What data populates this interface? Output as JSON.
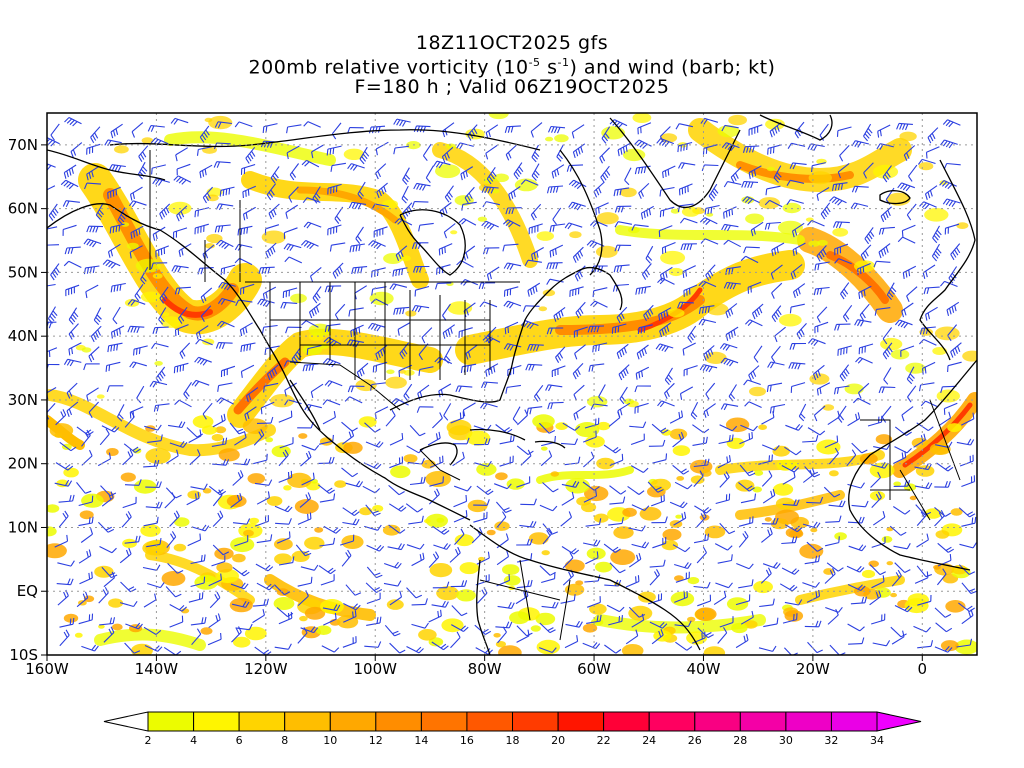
{
  "title": {
    "line1": "18Z11OCT2025 gfs",
    "line2_pre": "200mb relative vorticity (10",
    "line2_exp1": "-5",
    "line2_mid": " s",
    "line2_exp2": "-1",
    "line2_post": ") and wind (barb; kt)",
    "line3": "F=180 h ; Valid 06Z19OCT2025"
  },
  "map": {
    "lon_range": [
      -160,
      10
    ],
    "lat_range": [
      -10,
      75
    ],
    "lat_labels": [
      {
        "lat": 70,
        "text": "70N"
      },
      {
        "lat": 60,
        "text": "60N"
      },
      {
        "lat": 50,
        "text": "50N"
      },
      {
        "lat": 40,
        "text": "40N"
      },
      {
        "lat": 30,
        "text": "30N"
      },
      {
        "lat": 20,
        "text": "20N"
      },
      {
        "lat": 10,
        "text": "10N"
      },
      {
        "lat": 0,
        "text": "EQ"
      },
      {
        "lat": -10,
        "text": "10S"
      }
    ],
    "lon_labels": [
      {
        "lon": -160,
        "text": "160W"
      },
      {
        "lon": -140,
        "text": "140W"
      },
      {
        "lon": -120,
        "text": "120W"
      },
      {
        "lon": -100,
        "text": "100W"
      },
      {
        "lon": -80,
        "text": "80W"
      },
      {
        "lon": -60,
        "text": "60W"
      },
      {
        "lon": -40,
        "text": "40W"
      },
      {
        "lon": -20,
        "text": "20W"
      },
      {
        "lon": 0,
        "text": "0"
      }
    ],
    "barb_color": "#2b3fe0",
    "coast_color": "#000000"
  },
  "colorbar": {
    "levels": [
      "2",
      "4",
      "6",
      "8",
      "10",
      "12",
      "14",
      "16",
      "18",
      "20",
      "22",
      "24",
      "26",
      "28",
      "30",
      "32",
      "34"
    ],
    "colors": [
      "#ecfc00",
      "#fff500",
      "#ffd400",
      "#ffbe00",
      "#ffa800",
      "#ff8d00",
      "#ff7400",
      "#ff5800",
      "#ff3b00",
      "#ff1500",
      "#ff0037",
      "#ff0060",
      "#f90082",
      "#f400a6",
      "#ee00c6",
      "#ea00e6"
    ],
    "low_color": "#ffffff",
    "high_color": "#f000ff"
  }
}
